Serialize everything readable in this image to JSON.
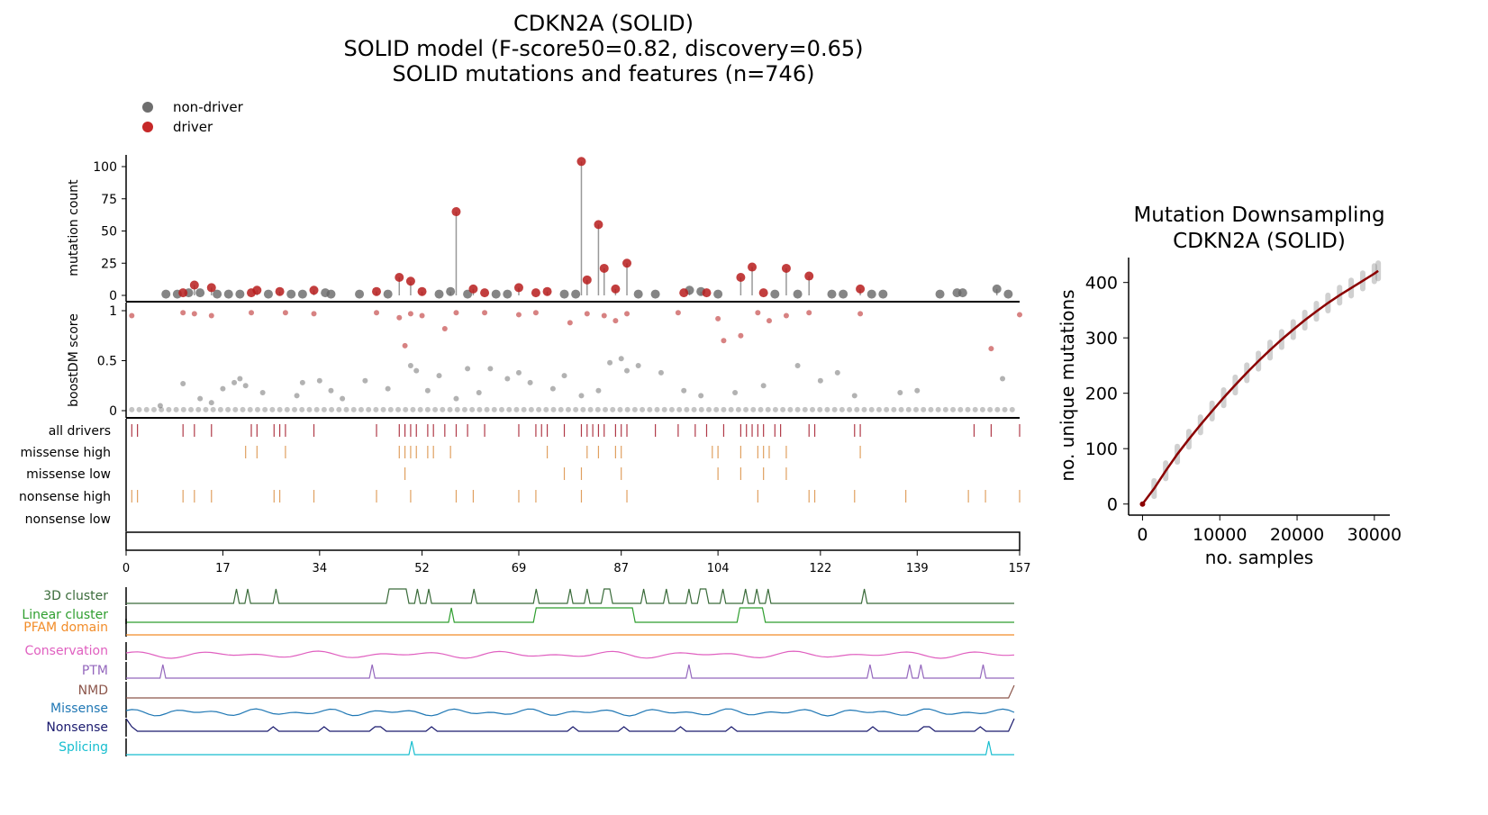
{
  "title": {
    "line1": "CDKN2A (SOLID)",
    "line2": "SOLID model (F-score50=0.82, discovery=0.65)",
    "line3": "SOLID mutations and features (n=746)"
  },
  "legend": [
    {
      "label": "non-driver",
      "color": "#6e6e6e"
    },
    {
      "label": "driver",
      "color": "#c62828"
    }
  ],
  "colors": {
    "driver": "#b71c1c",
    "nondriver": "#666666",
    "track_driver": "#b03a48",
    "track_other": "#e0a060",
    "curve": "#8b0000"
  },
  "chart_data": [
    {
      "type": "scatter",
      "panel": "mutation count",
      "ylabel": "mutation count",
      "yticks": [
        0,
        25,
        50,
        75,
        100
      ],
      "ylim": [
        0,
        105
      ],
      "xlim": [
        0,
        157
      ],
      "xticks": [
        0,
        17,
        34,
        52,
        69,
        87,
        104,
        122,
        139,
        157
      ],
      "drivers": [
        {
          "x": 10,
          "y": 2
        },
        {
          "x": 12,
          "y": 8
        },
        {
          "x": 15,
          "y": 6
        },
        {
          "x": 22,
          "y": 2
        },
        {
          "x": 23,
          "y": 4
        },
        {
          "x": 27,
          "y": 3
        },
        {
          "x": 33,
          "y": 4
        },
        {
          "x": 44,
          "y": 3
        },
        {
          "x": 48,
          "y": 14
        },
        {
          "x": 50,
          "y": 11
        },
        {
          "x": 52,
          "y": 3
        },
        {
          "x": 58,
          "y": 65
        },
        {
          "x": 61,
          "y": 5
        },
        {
          "x": 63,
          "y": 2
        },
        {
          "x": 69,
          "y": 6
        },
        {
          "x": 72,
          "y": 2
        },
        {
          "x": 74,
          "y": 3
        },
        {
          "x": 80,
          "y": 104
        },
        {
          "x": 81,
          "y": 12
        },
        {
          "x": 83,
          "y": 55
        },
        {
          "x": 84,
          "y": 21
        },
        {
          "x": 86,
          "y": 5
        },
        {
          "x": 88,
          "y": 25
        },
        {
          "x": 98,
          "y": 2
        },
        {
          "x": 102,
          "y": 2
        },
        {
          "x": 108,
          "y": 14
        },
        {
          "x": 110,
          "y": 22
        },
        {
          "x": 112,
          "y": 2
        },
        {
          "x": 116,
          "y": 21
        },
        {
          "x": 120,
          "y": 15
        },
        {
          "x": 129,
          "y": 5
        }
      ],
      "nondrivers": [
        {
          "x": 7,
          "y": 1
        },
        {
          "x": 9,
          "y": 1
        },
        {
          "x": 11,
          "y": 2
        },
        {
          "x": 13,
          "y": 2
        },
        {
          "x": 16,
          "y": 1
        },
        {
          "x": 18,
          "y": 1
        },
        {
          "x": 20,
          "y": 1
        },
        {
          "x": 25,
          "y": 1
        },
        {
          "x": 29,
          "y": 1
        },
        {
          "x": 31,
          "y": 1
        },
        {
          "x": 35,
          "y": 2
        },
        {
          "x": 36,
          "y": 1
        },
        {
          "x": 41,
          "y": 1
        },
        {
          "x": 46,
          "y": 1
        },
        {
          "x": 55,
          "y": 1
        },
        {
          "x": 57,
          "y": 3
        },
        {
          "x": 60,
          "y": 1
        },
        {
          "x": 65,
          "y": 1
        },
        {
          "x": 67,
          "y": 1
        },
        {
          "x": 77,
          "y": 1
        },
        {
          "x": 79,
          "y": 1
        },
        {
          "x": 90,
          "y": 1
        },
        {
          "x": 93,
          "y": 1
        },
        {
          "x": 99,
          "y": 4
        },
        {
          "x": 101,
          "y": 3
        },
        {
          "x": 104,
          "y": 1
        },
        {
          "x": 114,
          "y": 1
        },
        {
          "x": 118,
          "y": 1
        },
        {
          "x": 124,
          "y": 1
        },
        {
          "x": 126,
          "y": 1
        },
        {
          "x": 131,
          "y": 1
        },
        {
          "x": 133,
          "y": 1
        },
        {
          "x": 143,
          "y": 1
        },
        {
          "x": 146,
          "y": 2
        },
        {
          "x": 147,
          "y": 2
        },
        {
          "x": 153,
          "y": 5
        },
        {
          "x": 155,
          "y": 1
        }
      ]
    },
    {
      "type": "scatter",
      "panel": "boostDM score",
      "ylabel": "boostDM score",
      "yticks": [
        0,
        0.5,
        1
      ],
      "ylim": [
        0,
        1
      ],
      "drivers": [
        {
          "x": 1,
          "y": 0.95
        },
        {
          "x": 10,
          "y": 0.98
        },
        {
          "x": 12,
          "y": 0.97
        },
        {
          "x": 15,
          "y": 0.95
        },
        {
          "x": 22,
          "y": 0.98
        },
        {
          "x": 28,
          "y": 0.98
        },
        {
          "x": 33,
          "y": 0.97
        },
        {
          "x": 44,
          "y": 0.98
        },
        {
          "x": 48,
          "y": 0.93
        },
        {
          "x": 49,
          "y": 0.65
        },
        {
          "x": 50,
          "y": 0.97
        },
        {
          "x": 52,
          "y": 0.95
        },
        {
          "x": 56,
          "y": 0.82
        },
        {
          "x": 58,
          "y": 0.98
        },
        {
          "x": 63,
          "y": 0.98
        },
        {
          "x": 69,
          "y": 0.96
        },
        {
          "x": 72,
          "y": 0.98
        },
        {
          "x": 78,
          "y": 0.88
        },
        {
          "x": 81,
          "y": 0.97
        },
        {
          "x": 84,
          "y": 0.95
        },
        {
          "x": 86,
          "y": 0.9
        },
        {
          "x": 88,
          "y": 0.97
        },
        {
          "x": 97,
          "y": 0.98
        },
        {
          "x": 104,
          "y": 0.92
        },
        {
          "x": 105,
          "y": 0.7
        },
        {
          "x": 108,
          "y": 0.75
        },
        {
          "x": 111,
          "y": 0.98
        },
        {
          "x": 113,
          "y": 0.9
        },
        {
          "x": 116,
          "y": 0.95
        },
        {
          "x": 120,
          "y": 0.98
        },
        {
          "x": 129,
          "y": 0.97
        },
        {
          "x": 152,
          "y": 0.62
        },
        {
          "x": 157,
          "y": 0.96
        }
      ],
      "nondrivers": [
        {
          "x": 6,
          "y": 0.05
        },
        {
          "x": 10,
          "y": 0.27
        },
        {
          "x": 13,
          "y": 0.12
        },
        {
          "x": 15,
          "y": 0.08
        },
        {
          "x": 17,
          "y": 0.22
        },
        {
          "x": 19,
          "y": 0.28
        },
        {
          "x": 20,
          "y": 0.32
        },
        {
          "x": 21,
          "y": 0.25
        },
        {
          "x": 24,
          "y": 0.18
        },
        {
          "x": 30,
          "y": 0.15
        },
        {
          "x": 31,
          "y": 0.28
        },
        {
          "x": 34,
          "y": 0.3
        },
        {
          "x": 36,
          "y": 0.2
        },
        {
          "x": 38,
          "y": 0.12
        },
        {
          "x": 42,
          "y": 0.3
        },
        {
          "x": 46,
          "y": 0.22
        },
        {
          "x": 50,
          "y": 0.45
        },
        {
          "x": 51,
          "y": 0.4
        },
        {
          "x": 53,
          "y": 0.2
        },
        {
          "x": 55,
          "y": 0.35
        },
        {
          "x": 58,
          "y": 0.12
        },
        {
          "x": 60,
          "y": 0.42
        },
        {
          "x": 62,
          "y": 0.18
        },
        {
          "x": 64,
          "y": 0.42
        },
        {
          "x": 67,
          "y": 0.32
        },
        {
          "x": 69,
          "y": 0.38
        },
        {
          "x": 71,
          "y": 0.28
        },
        {
          "x": 75,
          "y": 0.22
        },
        {
          "x": 77,
          "y": 0.35
        },
        {
          "x": 80,
          "y": 0.15
        },
        {
          "x": 83,
          "y": 0.2
        },
        {
          "x": 85,
          "y": 0.48
        },
        {
          "x": 87,
          "y": 0.52
        },
        {
          "x": 88,
          "y": 0.4
        },
        {
          "x": 90,
          "y": 0.45
        },
        {
          "x": 94,
          "y": 0.38
        },
        {
          "x": 98,
          "y": 0.2
        },
        {
          "x": 101,
          "y": 0.15
        },
        {
          "x": 107,
          "y": 0.18
        },
        {
          "x": 112,
          "y": 0.25
        },
        {
          "x": 118,
          "y": 0.45
        },
        {
          "x": 122,
          "y": 0.3
        },
        {
          "x": 125,
          "y": 0.38
        },
        {
          "x": 128,
          "y": 0.15
        },
        {
          "x": 136,
          "y": 0.18
        },
        {
          "x": 139,
          "y": 0.2
        },
        {
          "x": 154,
          "y": 0.32
        }
      ]
    },
    {
      "type": "table",
      "panel": "feature tracks",
      "rows": [
        {
          "label": "all drivers",
          "ticks": [
            1,
            2,
            10,
            12,
            15,
            22,
            23,
            26,
            27,
            28,
            33,
            44,
            48,
            49,
            50,
            51,
            53,
            54,
            56,
            58,
            60,
            63,
            69,
            72,
            73,
            74,
            77,
            80,
            81,
            82,
            83,
            84,
            86,
            87,
            88,
            93,
            97,
            100,
            102,
            105,
            108,
            109,
            110,
            111,
            112,
            114,
            115,
            120,
            121,
            128,
            129,
            149,
            152,
            157
          ]
        },
        {
          "label": "missense high",
          "ticks": [
            21,
            23,
            28,
            48,
            49,
            50,
            51,
            53,
            54,
            57,
            74,
            81,
            83,
            86,
            87,
            103,
            104,
            108,
            111,
            112,
            113,
            116,
            129
          ]
        },
        {
          "label": "missense low",
          "ticks": [
            49,
            77,
            80,
            87,
            104,
            108,
            112,
            116
          ]
        },
        {
          "label": "nonsense high",
          "ticks": [
            1,
            2,
            10,
            12,
            15,
            26,
            27,
            33,
            44,
            50,
            58,
            61,
            69,
            72,
            80,
            88,
            111,
            120,
            121,
            128,
            137,
            148,
            151,
            157
          ]
        },
        {
          "label": "nonsense low",
          "ticks": []
        }
      ]
    },
    {
      "type": "line",
      "panel": "position features",
      "series": [
        {
          "name": "3D cluster",
          "color": "#3a6b3a",
          "peaks": [
            [
              19,
              20
            ],
            [
              21,
              22
            ],
            [
              26,
              27
            ],
            [
              46,
              50
            ],
            [
              51,
              52
            ],
            [
              53,
              54
            ],
            [
              61,
              62
            ],
            [
              72,
              73
            ],
            [
              78,
              79
            ],
            [
              81,
              82
            ],
            [
              84,
              86
            ],
            [
              91,
              92
            ],
            [
              95,
              96
            ],
            [
              99,
              100
            ],
            [
              101,
              103
            ],
            [
              105,
              106
            ],
            [
              109,
              110
            ],
            [
              111,
              112
            ],
            [
              113,
              114
            ],
            [
              130,
              131
            ]
          ]
        },
        {
          "name": "Linear cluster",
          "color": "#2e9e2e",
          "peaks": [
            [
              57,
              58
            ],
            [
              72,
              90
            ],
            [
              108,
              113
            ]
          ]
        },
        {
          "name": "PFAM domain",
          "color": "#f28c28",
          "peaks": []
        },
        {
          "name": "Conservation",
          "color": "#e060c0",
          "peaks": []
        },
        {
          "name": "PTM",
          "color": "#9467bd",
          "peaks": [
            [
              6,
              7
            ],
            [
              43,
              44
            ],
            [
              99,
              100
            ],
            [
              131,
              132
            ],
            [
              138,
              139
            ],
            [
              140,
              141
            ],
            [
              151,
              152
            ]
          ]
        },
        {
          "name": "NMD",
          "color": "#8c564b",
          "peaks": []
        },
        {
          "name": "Missense",
          "color": "#1f77b4",
          "peaks": []
        },
        {
          "name": "Nonsense",
          "color": "#1a1a6e",
          "peaks": []
        },
        {
          "name": "Splicing",
          "color": "#17becf",
          "peaks": [
            [
              50,
              51
            ],
            [
              152,
              153
            ]
          ]
        }
      ]
    },
    {
      "type": "line",
      "title": "Mutation Downsampling\nCDKN2A (SOLID)",
      "xlabel": "no. samples",
      "ylabel": "no. unique mutations",
      "xticks": [
        0,
        10000,
        20000,
        30000
      ],
      "yticks": [
        0,
        100,
        200,
        300,
        400
      ],
      "xlim": [
        -1800,
        32000
      ],
      "ylim": [
        -20,
        445
      ],
      "x": [
        0,
        1500,
        3000,
        4500,
        6000,
        7500,
        9000,
        10500,
        12000,
        13500,
        15000,
        16500,
        18000,
        19500,
        21000,
        22500,
        24000,
        25500,
        27000,
        28500,
        30000,
        30500
      ],
      "y": [
        0,
        28,
        60,
        90,
        117,
        143,
        168,
        192,
        215,
        237,
        258,
        278,
        297,
        315,
        332,
        348,
        363,
        377,
        390,
        403,
        416,
        421
      ]
    }
  ]
}
